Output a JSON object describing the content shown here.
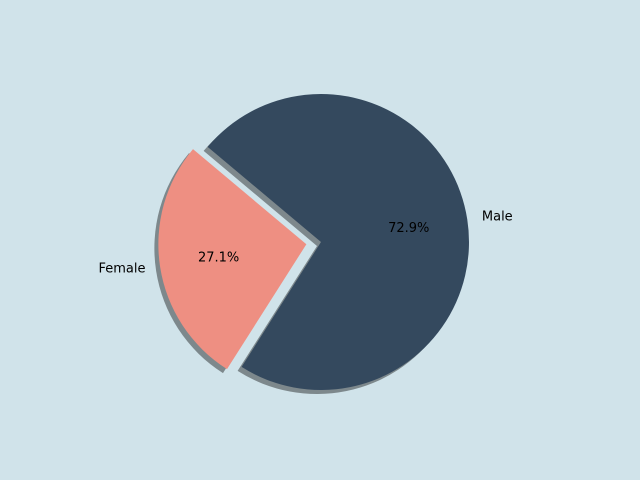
{
  "chart_data": {
    "type": "pie",
    "categories": [
      "Female",
      "Male"
    ],
    "values": [
      27.1,
      72.9
    ],
    "value_labels": [
      "27.1%",
      "72.9%"
    ],
    "colors": [
      "#ee8f82",
      "#34495e"
    ],
    "explode": [
      0.1,
      0
    ],
    "startangle": 140,
    "shadow": true
  }
}
